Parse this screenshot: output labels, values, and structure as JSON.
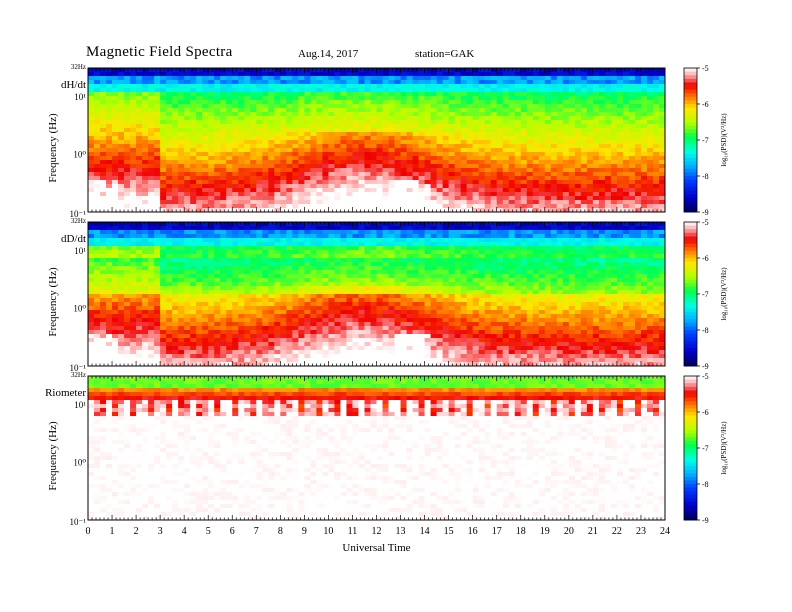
{
  "header": {
    "title": "Magnetic  Field  Spectra",
    "date": "Aug.14, 2017",
    "station": "station=GAK"
  },
  "chart_data": [
    {
      "type": "heatmap",
      "panel_label": "dH/dt",
      "ylabel": "Frequency  (Hz)",
      "xlabel": "",
      "y_ticks": [
        "32Hz",
        "10¹",
        "10⁰",
        "10⁻¹"
      ],
      "y_scale": "log",
      "ylim": [
        0.1,
        32
      ],
      "xlim": [
        0,
        24
      ],
      "x_ticks": [
        0,
        1,
        2,
        3,
        4,
        5,
        6,
        7,
        8,
        9,
        10,
        11,
        12,
        13,
        14,
        15,
        16,
        17,
        18,
        19,
        20,
        21,
        22,
        23,
        24
      ],
      "colorbar": {
        "label": "log₁₀(PSD)(V²/Hz)",
        "ticks": [
          "-5",
          "-6",
          "-7",
          "-8",
          "-9"
        ],
        "range": [
          -9,
          -5
        ]
      }
    },
    {
      "type": "heatmap",
      "panel_label": "dD/dt",
      "ylabel": "Frequency  (Hz)",
      "xlabel": "",
      "y_ticks": [
        "32Hz",
        "10¹",
        "10⁰",
        "10⁻¹"
      ],
      "y_scale": "log",
      "ylim": [
        0.1,
        32
      ],
      "xlim": [
        0,
        24
      ],
      "x_ticks": [
        0,
        1,
        2,
        3,
        4,
        5,
        6,
        7,
        8,
        9,
        10,
        11,
        12,
        13,
        14,
        15,
        16,
        17,
        18,
        19,
        20,
        21,
        22,
        23,
        24
      ],
      "colorbar": {
        "label": "log₁₀(PSD)(V²/Hz)",
        "ticks": [
          "-5",
          "-6",
          "-7",
          "-8",
          "-9"
        ],
        "range": [
          -9,
          -5
        ]
      }
    },
    {
      "type": "heatmap",
      "panel_label": "Riometer",
      "ylabel": "Frequency  (Hz)",
      "xlabel": "Universal  Time",
      "y_ticks": [
        "32Hz",
        "10¹",
        "10⁰",
        "10⁻¹"
      ],
      "y_scale": "log",
      "ylim": [
        0.1,
        32
      ],
      "xlim": [
        0,
        24
      ],
      "x_ticks": [
        0,
        1,
        2,
        3,
        4,
        5,
        6,
        7,
        8,
        9,
        10,
        11,
        12,
        13,
        14,
        15,
        16,
        17,
        18,
        19,
        20,
        21,
        22,
        23,
        24
      ],
      "colorbar": {
        "label": "log₁₀(PSD)(V²/Hz)",
        "ticks": [
          "-5",
          "-6",
          "-7",
          "-8",
          "-9"
        ],
        "range": [
          -9,
          -5
        ]
      }
    }
  ]
}
